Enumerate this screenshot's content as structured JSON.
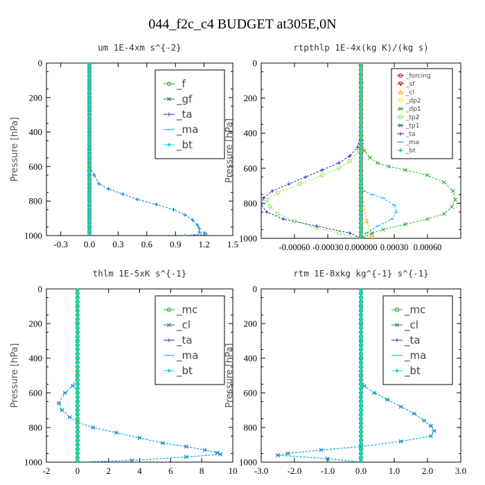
{
  "figure": {
    "title": "044_f2c_c4  BUDGET at305E,0N"
  },
  "chart_data": [
    {
      "type": "line",
      "title": "um  1E-4xm s^{-2}",
      "xlabel": "",
      "ylabel": "Pressure [hPa]",
      "xlim": [
        -0.45,
        1.5
      ],
      "ylim": [
        1000,
        0
      ],
      "xticks": [
        -0.3,
        0.0,
        0.3,
        0.6,
        0.9,
        1.2,
        1.5
      ],
      "xtick_labels": [
        "-0.3",
        "0.0",
        "0.3",
        "0.6",
        "0.9",
        "1.2",
        "1.5"
      ],
      "yticks": [
        0,
        200,
        400,
        600,
        800,
        1000
      ],
      "legend_position": "top-right",
      "legend_style": "large",
      "series": [
        {
          "name": "_f",
          "color": "#22aa22",
          "marker": "circle",
          "x": [
            0,
            0,
            0,
            0,
            0,
            0,
            0,
            0,
            0,
            0,
            0
          ],
          "y": [
            0,
            100,
            200,
            300,
            400,
            500,
            600,
            700,
            800,
            900,
            1000
          ]
        },
        {
          "name": "_gf",
          "color": "#1a6e6e",
          "marker": "x",
          "x": [
            0,
            0,
            0,
            0,
            0,
            0,
            0,
            0,
            0,
            0,
            0
          ],
          "y": [
            0,
            100,
            200,
            300,
            400,
            500,
            600,
            700,
            800,
            900,
            1000
          ]
        },
        {
          "name": "_ta",
          "color": "#2222cc",
          "marker": "plus",
          "x": [
            0,
            0,
            0,
            0,
            0,
            0,
            0,
            0,
            0.05,
            0.1,
            0.2,
            0.35,
            0.5,
            0.7,
            0.88,
            1.0,
            1.08,
            1.13,
            1.15,
            1.15,
            1.22,
            1.0
          ],
          "y": [
            0,
            100,
            200,
            300,
            400,
            500,
            550,
            600,
            650,
            700,
            730,
            760,
            790,
            820,
            850,
            880,
            910,
            940,
            960,
            980,
            990,
            1000
          ]
        },
        {
          "name": "_ma",
          "color": "#00aaee",
          "marker": "dash",
          "x": [
            0,
            0,
            0,
            0,
            0,
            0,
            0,
            0,
            0.05,
            0.1,
            0.2,
            0.35,
            0.5,
            0.7,
            0.88,
            1.0,
            1.08,
            1.13,
            1.15,
            1.15,
            1.22,
            1.0
          ],
          "y": [
            0,
            100,
            200,
            300,
            400,
            500,
            550,
            600,
            650,
            700,
            730,
            760,
            790,
            820,
            850,
            880,
            910,
            940,
            960,
            980,
            990,
            1000
          ]
        },
        {
          "name": "_bt",
          "color": "#00dddd",
          "marker": "diamond",
          "x": [
            0,
            0,
            0,
            0,
            0,
            0,
            0,
            0,
            0,
            0,
            0
          ],
          "y": [
            0,
            100,
            200,
            300,
            400,
            500,
            600,
            700,
            800,
            900,
            1000
          ]
        }
      ]
    },
    {
      "type": "line",
      "title": "rtpthlp  1E-4x(kg K)/(kg s)",
      "xlabel": "",
      "ylabel": "Pressure [hPa]",
      "xlim": [
        -0.0009,
        0.0009
      ],
      "ylim": [
        1000,
        0
      ],
      "xticks": [
        -0.0006,
        -0.0003,
        0.0,
        0.0003,
        0.0006
      ],
      "xtick_labels": [
        "-0.00060",
        "-0.00030",
        "0.000000",
        "0.00030",
        "0.00060"
      ],
      "yticks": [
        0,
        200,
        400,
        600,
        800,
        1000
      ],
      "legend_position": "top-right",
      "legend_style": "small",
      "series": [
        {
          "name": "_forcing",
          "color": "#dd0000",
          "marker": "circle",
          "x": [
            0,
            0,
            0,
            0,
            0,
            0,
            0,
            0,
            0,
            0,
            0
          ],
          "y": [
            0,
            100,
            200,
            300,
            400,
            500,
            600,
            700,
            800,
            900,
            1000
          ]
        },
        {
          "name": "_sf",
          "color": "#dd0000",
          "marker": "down-triangle",
          "x": [
            0,
            0,
            0,
            0,
            0,
            0,
            0,
            0,
            0,
            0,
            0
          ],
          "y": [
            0,
            100,
            200,
            300,
            400,
            500,
            600,
            700,
            800,
            900,
            1000
          ]
        },
        {
          "name": "_cl",
          "color": "#ffaa00",
          "marker": "up-triangle",
          "x": [
            0,
            0,
            0,
            0,
            0,
            0,
            0,
            0,
            5e-05,
            0.0001,
            0
          ],
          "y": [
            0,
            100,
            200,
            300,
            400,
            500,
            600,
            700,
            900,
            980,
            1000
          ]
        },
        {
          "name": "_dp2",
          "color": "#ffee00",
          "marker": "circle",
          "x": [
            0,
            0,
            0,
            0,
            0,
            0,
            0,
            0,
            0,
            0,
            0
          ],
          "y": [
            0,
            100,
            200,
            300,
            400,
            500,
            600,
            700,
            800,
            900,
            1000
          ]
        },
        {
          "name": "_dp1",
          "color": "#22aa22",
          "marker": "x",
          "x": [
            0,
            0,
            0,
            1e-05,
            3e-05,
            8e-05,
            0.00015,
            0.00025,
            0.0004,
            0.0006,
            0.00075,
            0.00083,
            0.00085,
            0.00082,
            0.00075,
            0.0006,
            0.0004,
            0.0002,
            0.0001,
            0
          ],
          "y": [
            0,
            300,
            400,
            450,
            500,
            540,
            570,
            590,
            610,
            640,
            680,
            730,
            780,
            820,
            860,
            890,
            920,
            950,
            970,
            1000
          ]
        },
        {
          "name": "_tp2",
          "color": "#88ee44",
          "marker": "circle",
          "x": [
            0,
            0,
            0,
            -2e-05,
            -0.0001,
            -0.0002,
            -0.00035,
            -0.00055,
            -0.00075,
            -0.00085,
            -0.00082,
            -0.00075,
            -0.0006,
            -0.0004,
            -0.0002,
            0
          ],
          "y": [
            0,
            300,
            400,
            500,
            560,
            600,
            640,
            690,
            740,
            780,
            820,
            860,
            900,
            940,
            970,
            1000
          ]
        },
        {
          "name": "_tp1",
          "color": "#1a6e6e",
          "marker": "x",
          "x": [
            0,
            0,
            0,
            0,
            0,
            0,
            0,
            0,
            0,
            0,
            0
          ],
          "y": [
            0,
            100,
            200,
            300,
            400,
            500,
            600,
            700,
            800,
            900,
            1000
          ]
        },
        {
          "name": "_ta",
          "color": "#2222cc",
          "marker": "plus",
          "x": [
            0,
            0,
            -3e-05,
            -0.0001,
            -0.0002,
            -0.00035,
            -0.0005,
            -0.00065,
            -0.0008,
            -0.00088,
            -0.0009,
            -0.00085,
            -0.0007,
            -0.0004,
            -0.0001,
            0
          ],
          "y": [
            0,
            400,
            480,
            530,
            570,
            610,
            650,
            690,
            730,
            770,
            810,
            850,
            890,
            930,
            970,
            1000
          ]
        },
        {
          "name": "_ma",
          "color": "#00aaee",
          "marker": "dash",
          "x": [
            0,
            0,
            0,
            0,
            3e-05,
            0.0001,
            0.0002,
            0.0003,
            0.00032,
            0.00028,
            0.00015,
            5e-05,
            0
          ],
          "y": [
            0,
            400,
            600,
            700,
            730,
            750,
            770,
            810,
            850,
            890,
            930,
            970,
            1000
          ]
        },
        {
          "name": "_bt",
          "color": "#00dddd",
          "marker": "diamond",
          "x": [
            0,
            0,
            0,
            0,
            0,
            0,
            0,
            0,
            0,
            0,
            0
          ],
          "y": [
            0,
            100,
            200,
            300,
            400,
            500,
            600,
            700,
            800,
            900,
            1000
          ]
        }
      ]
    },
    {
      "type": "line",
      "title": "thlm  1E-5xK s^{-1}",
      "xlabel": "",
      "ylabel": "Pressure [hPa]",
      "xlim": [
        -2,
        10
      ],
      "ylim": [
        1000,
        0
      ],
      "xticks": [
        -2,
        0,
        2,
        4,
        6,
        8,
        10
      ],
      "xtick_labels": [
        "-2",
        "0",
        "2",
        "4",
        "6",
        "8",
        "10"
      ],
      "yticks": [
        0,
        200,
        400,
        600,
        800,
        1000
      ],
      "legend_position": "top-right",
      "legend_style": "large",
      "series": [
        {
          "name": "_mc",
          "color": "#22aa22",
          "marker": "circle",
          "x": [
            0,
            0,
            0,
            0,
            0,
            0,
            0,
            0,
            0,
            0,
            0
          ],
          "y": [
            0,
            100,
            200,
            300,
            400,
            500,
            600,
            700,
            800,
            900,
            1000
          ]
        },
        {
          "name": "_cl",
          "color": "#1a6e9e",
          "marker": "x",
          "x": [
            0,
            0,
            0,
            0,
            0,
            0,
            -0.3,
            -0.8,
            -1.2,
            -1.0,
            -0.5,
            0,
            1,
            2.5,
            4,
            5.5,
            7,
            8.2,
            9,
            9.2,
            7,
            3.5,
            0
          ],
          "y": [
            0,
            100,
            200,
            300,
            400,
            500,
            560,
            600,
            660,
            700,
            740,
            770,
            800,
            830,
            860,
            890,
            910,
            930,
            945,
            955,
            970,
            990,
            1000
          ]
        },
        {
          "name": "_ta",
          "color": "#2222cc",
          "marker": "plus",
          "x": [
            0,
            0,
            0,
            0,
            0,
            0,
            0,
            0,
            0,
            0,
            0
          ],
          "y": [
            0,
            100,
            200,
            300,
            400,
            500,
            600,
            700,
            800,
            900,
            1000
          ]
        },
        {
          "name": "_ma",
          "color": "#00aaee",
          "marker": "dash",
          "x": [
            0,
            0,
            0,
            0,
            0,
            0,
            -0.3,
            -0.8,
            -1.2,
            -1.0,
            -0.5,
            0,
            1,
            2.5,
            4,
            5.5,
            7,
            8.2,
            9,
            9.2,
            7,
            3.5,
            0
          ],
          "y": [
            0,
            100,
            200,
            300,
            400,
            500,
            560,
            600,
            660,
            700,
            740,
            770,
            800,
            830,
            860,
            890,
            910,
            930,
            945,
            955,
            970,
            990,
            1000
          ]
        },
        {
          "name": "_bt",
          "color": "#00dddd",
          "marker": "diamond",
          "x": [
            0,
            0,
            0,
            0,
            0,
            0,
            0,
            0,
            0,
            0,
            0
          ],
          "y": [
            0,
            100,
            200,
            300,
            400,
            500,
            600,
            700,
            800,
            900,
            1000
          ]
        }
      ]
    },
    {
      "type": "line",
      "title": "rtm  1E-8xkg kg^{-1} s^{-1}",
      "xlabel": "",
      "ylabel": "Pressure [hPa]",
      "xlim": [
        -3.0,
        3.0
      ],
      "ylim": [
        1000,
        0
      ],
      "xticks": [
        -3.0,
        -2.0,
        -1.0,
        0.0,
        1.0,
        2.0,
        3.0
      ],
      "xtick_labels": [
        "-3.0",
        "-2.0",
        "-1.0",
        "0.0",
        "1.0",
        "2.0",
        "3.0"
      ],
      "yticks": [
        0,
        200,
        400,
        600,
        800,
        1000
      ],
      "legend_position": "top-right",
      "legend_style": "large",
      "series": [
        {
          "name": "_mc",
          "color": "#22aa22",
          "marker": "circle",
          "x": [
            0,
            0,
            0,
            0,
            0,
            0,
            0,
            0,
            0,
            0,
            0
          ],
          "y": [
            0,
            100,
            200,
            300,
            400,
            500,
            600,
            700,
            800,
            900,
            1000
          ]
        },
        {
          "name": "_cl",
          "color": "#1a6e9e",
          "marker": "x",
          "x": [
            0,
            0,
            0,
            0,
            0,
            0,
            0.1,
            0.4,
            0.8,
            1.2,
            1.6,
            1.9,
            2.1,
            2.2,
            2.1,
            1.2,
            0,
            -1.2,
            -2.2,
            -2.5,
            -1.0,
            0
          ],
          "y": [
            0,
            100,
            200,
            300,
            400,
            500,
            560,
            600,
            640,
            680,
            720,
            760,
            790,
            820,
            850,
            880,
            910,
            930,
            950,
            960,
            980,
            1000
          ]
        },
        {
          "name": "_ta",
          "color": "#2222cc",
          "marker": "plus",
          "x": [
            0,
            0,
            0,
            0,
            0,
            0,
            0,
            0,
            0,
            0,
            0
          ],
          "y": [
            0,
            100,
            200,
            300,
            400,
            500,
            600,
            700,
            800,
            900,
            1000
          ]
        },
        {
          "name": "_ma",
          "color": "#00aaee",
          "marker": "dash",
          "x": [
            0,
            0,
            0,
            0,
            0,
            0,
            0.1,
            0.4,
            0.8,
            1.2,
            1.6,
            1.9,
            2.1,
            2.2,
            2.1,
            1.2,
            0,
            -1.2,
            -2.2,
            -2.5,
            -1.0,
            0
          ],
          "y": [
            0,
            100,
            200,
            300,
            400,
            500,
            560,
            600,
            640,
            680,
            720,
            760,
            790,
            820,
            850,
            880,
            910,
            930,
            950,
            960,
            980,
            1000
          ]
        },
        {
          "name": "_bt",
          "color": "#00dddd",
          "marker": "diamond",
          "x": [
            0,
            0,
            0,
            0,
            0,
            0,
            0,
            0,
            0,
            0,
            0
          ],
          "y": [
            0,
            100,
            200,
            300,
            400,
            500,
            600,
            700,
            800,
            900,
            1000
          ]
        }
      ]
    }
  ]
}
